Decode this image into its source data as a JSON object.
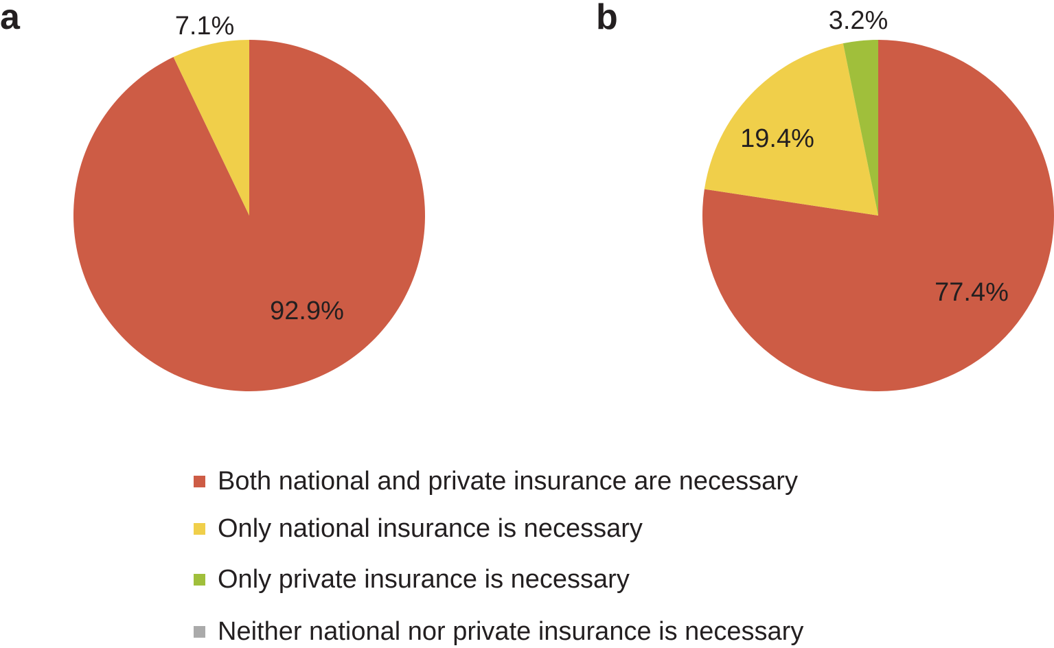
{
  "colors": {
    "both": "#cd5c45",
    "national": "#f0cf4a",
    "private": "#a0bf3b",
    "neither": "#aaaaaa"
  },
  "legend": [
    {
      "key": "both",
      "label": "Both national and private insurance are necessary"
    },
    {
      "key": "national",
      "label": "Only national insurance is necessary"
    },
    {
      "key": "private",
      "label": "Only private insurance is necessary"
    },
    {
      "key": "neither",
      "label": "Neither national nor private insurance is necessary"
    }
  ],
  "chart_data": [
    {
      "type": "pie",
      "panel": "a",
      "slices": [
        {
          "key": "both",
          "value": 92.9,
          "label": "92.9%"
        },
        {
          "key": "national",
          "value": 7.1,
          "label": "7.1%"
        },
        {
          "key": "private",
          "value": 0,
          "label": ""
        },
        {
          "key": "neither",
          "value": 0,
          "label": ""
        }
      ]
    },
    {
      "type": "pie",
      "panel": "b",
      "slices": [
        {
          "key": "both",
          "value": 77.4,
          "label": "77.4%"
        },
        {
          "key": "national",
          "value": 19.4,
          "label": "19.4%"
        },
        {
          "key": "private",
          "value": 3.2,
          "label": "3.2%"
        },
        {
          "key": "neither",
          "value": 0,
          "label": ""
        }
      ]
    }
  ]
}
